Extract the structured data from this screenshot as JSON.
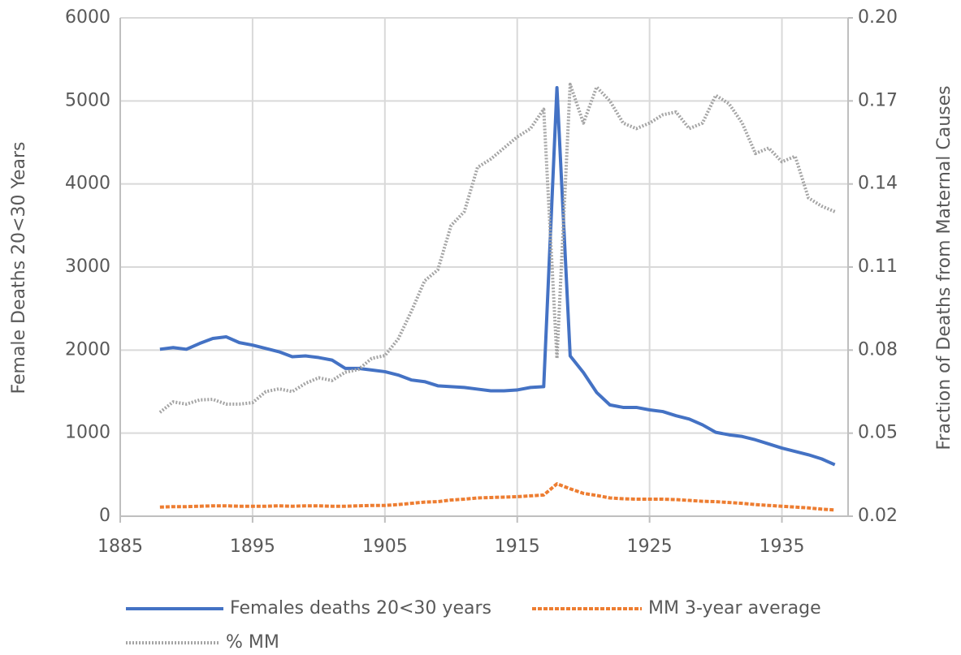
{
  "chart_data": {
    "type": "line",
    "y_label": "Female Deaths 20<30 Years",
    "y2_label": "Fraction of Deaths from Maternal Causes",
    "x": [
      1888,
      1889,
      1890,
      1891,
      1892,
      1893,
      1894,
      1895,
      1896,
      1897,
      1898,
      1899,
      1900,
      1901,
      1902,
      1903,
      1904,
      1905,
      1906,
      1907,
      1908,
      1909,
      1910,
      1911,
      1912,
      1913,
      1914,
      1915,
      1916,
      1917,
      1918,
      1919,
      1920,
      1921,
      1922,
      1923,
      1924,
      1925,
      1926,
      1927,
      1928,
      1929,
      1930,
      1931,
      1932,
      1933,
      1934,
      1935,
      1936,
      1937,
      1938,
      1939
    ],
    "series": [
      {
        "name": "Females deaths 20<30 years",
        "color": "#4472c4",
        "style": "solid",
        "values": [
          2010,
          2030,
          2010,
          2080,
          2140,
          2160,
          2090,
          2060,
          2020,
          1980,
          1920,
          1930,
          1910,
          1880,
          1780,
          1780,
          1760,
          1740,
          1700,
          1640,
          1620,
          1570,
          1560,
          1550,
          1530,
          1510,
          1510,
          1520,
          1550,
          1560,
          5160,
          1930,
          1730,
          1490,
          1340,
          1310,
          1310,
          1280,
          1260,
          1210,
          1170,
          1100,
          1010,
          980,
          960,
          920,
          870,
          820,
          780,
          740,
          690,
          620
        ]
      },
      {
        "name": "MM 3-year average",
        "color": "#ed7d31",
        "style": "dashed",
        "values": [
          110,
          115,
          115,
          120,
          125,
          125,
          120,
          120,
          120,
          125,
          120,
          125,
          125,
          120,
          120,
          125,
          130,
          130,
          140,
          155,
          170,
          175,
          195,
          205,
          220,
          225,
          230,
          235,
          245,
          255,
          390,
          330,
          275,
          250,
          220,
          210,
          205,
          205,
          205,
          200,
          190,
          180,
          175,
          165,
          155,
          140,
          130,
          120,
          110,
          100,
          85,
          75
        ]
      },
      {
        "name": "% MM",
        "color": "#a5a5a5",
        "style": "dotted",
        "axis": "y2",
        "values": [
          0.0575,
          0.0613,
          0.0605,
          0.062,
          0.0622,
          0.0605,
          0.0605,
          0.061,
          0.065,
          0.066,
          0.065,
          0.068,
          0.07,
          0.069,
          0.072,
          0.073,
          0.077,
          0.078,
          0.084,
          0.094,
          0.105,
          0.109,
          0.125,
          0.13,
          0.146,
          0.149,
          0.153,
          0.157,
          0.16,
          0.167,
          0.077,
          0.176,
          0.162,
          0.175,
          0.17,
          0.162,
          0.16,
          0.162,
          0.165,
          0.166,
          0.16,
          0.162,
          0.172,
          0.169,
          0.162,
          0.151,
          0.153,
          0.148,
          0.15,
          0.135,
          0.132,
          0.13
        ]
      }
    ],
    "xlim": [
      1885,
      1940
    ],
    "xticks": [
      1885,
      1895,
      1905,
      1915,
      1925,
      1935
    ],
    "ylim": [
      0,
      6000
    ],
    "yticks": [
      0,
      1000,
      2000,
      3000,
      4000,
      5000,
      6000
    ],
    "y2lim": [
      0.02,
      0.2
    ],
    "y2ticks": [
      0.02,
      0.05,
      0.08,
      0.11,
      0.14,
      0.17,
      {
        "value": 0.2,
        "label": "0.20"
      }
    ],
    "grid": true,
    "legend": "bottom"
  }
}
